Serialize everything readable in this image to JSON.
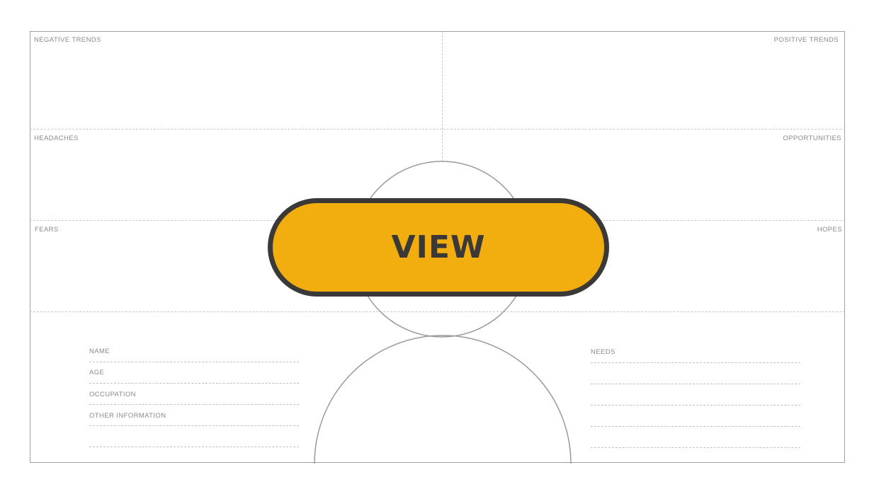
{
  "canvas": {
    "quadrants": {
      "negative_trends": "NEGATIVE TRENDS",
      "positive_trends": "POSITIVE TRENDS",
      "headaches": "HEADACHES",
      "opportunities": "OPPORTUNITIES",
      "fears": "FEARS",
      "hopes": "HOPES"
    },
    "profile_fields": [
      "NAME",
      "AGE",
      "OCCUPATION",
      "OTHER INFORMATION"
    ],
    "needs_label": "NEEDS"
  },
  "overlay": {
    "view_label": "VIEW"
  },
  "colors": {
    "button_fill": "#f2ae0f",
    "button_border": "#3a3937",
    "line": "#c8c8c8",
    "label": "#8a8a8a"
  }
}
